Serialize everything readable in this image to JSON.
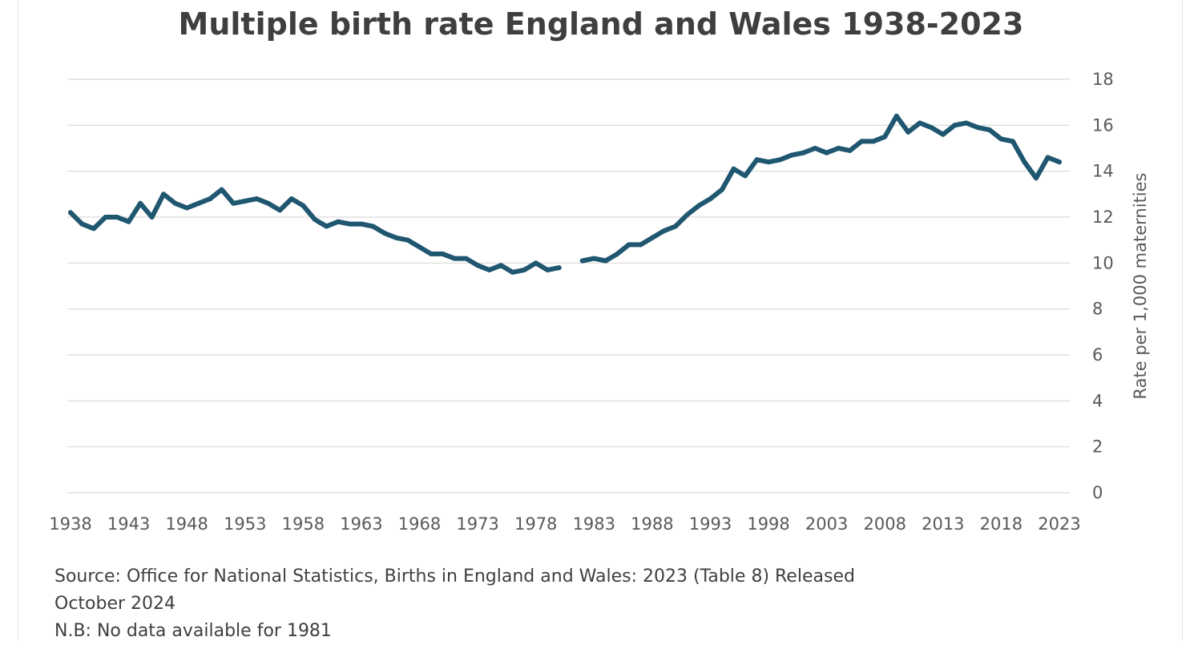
{
  "chart_data": {
    "type": "line",
    "title": "Multiple birth rate England and Wales 1938-2023",
    "xlabel": "",
    "ylabel": "Rate per 1,000 maternities",
    "ylim": [
      0,
      18
    ],
    "yticks": [
      "0",
      "2",
      "4",
      "6",
      "8",
      "10",
      "12",
      "14",
      "16",
      "18"
    ],
    "xticks": [
      "1938",
      "1943",
      "1948",
      "1953",
      "1958",
      "1963",
      "1968",
      "1973",
      "1978",
      "1983",
      "1988",
      "1993",
      "1998",
      "2003",
      "2008",
      "2013",
      "2018",
      "2023"
    ],
    "grid": true,
    "y_axis_position": "right",
    "line_color": "#1f5670",
    "x": [
      1938,
      1939,
      1940,
      1941,
      1942,
      1943,
      1944,
      1945,
      1946,
      1947,
      1948,
      1949,
      1950,
      1951,
      1952,
      1953,
      1954,
      1955,
      1956,
      1957,
      1958,
      1959,
      1960,
      1961,
      1962,
      1963,
      1964,
      1965,
      1966,
      1967,
      1968,
      1969,
      1970,
      1971,
      1972,
      1973,
      1974,
      1975,
      1976,
      1977,
      1978,
      1979,
      1980,
      1981,
      1982,
      1983,
      1984,
      1985,
      1986,
      1987,
      1988,
      1989,
      1990,
      1991,
      1992,
      1993,
      1994,
      1995,
      1996,
      1997,
      1998,
      1999,
      2000,
      2001,
      2002,
      2003,
      2004,
      2005,
      2006,
      2007,
      2008,
      2009,
      2010,
      2011,
      2012,
      2013,
      2014,
      2015,
      2016,
      2017,
      2018,
      2019,
      2020,
      2021,
      2022,
      2023
    ],
    "series": [
      {
        "values": [
          12.2,
          11.7,
          11.5,
          12.0,
          12.0,
          11.8,
          12.6,
          12.0,
          13.0,
          12.6,
          12.4,
          12.6,
          12.8,
          13.2,
          12.6,
          12.7,
          12.8,
          12.6,
          12.3,
          12.8,
          12.5,
          11.9,
          11.6,
          11.8,
          11.7,
          11.7,
          11.6,
          11.3,
          11.1,
          11.0,
          10.7,
          10.4,
          10.4,
          10.2,
          10.2,
          9.9,
          9.7,
          9.9,
          9.6,
          9.7,
          10.0,
          9.7,
          9.8,
          null,
          10.1,
          10.2,
          10.1,
          10.4,
          10.8,
          10.8,
          11.1,
          11.4,
          11.6,
          12.1,
          12.5,
          12.8,
          13.2,
          14.1,
          13.8,
          14.5,
          14.4,
          14.5,
          14.7,
          14.8,
          15.0,
          14.8,
          15.0,
          14.9,
          15.3,
          15.3,
          15.5,
          16.4,
          15.7,
          16.1,
          15.9,
          15.6,
          16.0,
          16.1,
          15.9,
          15.8,
          15.4,
          15.3,
          14.4,
          13.7,
          14.6,
          14.4
        ]
      }
    ]
  },
  "notes": {
    "source_line1": "Source: Office for National Statistics, Births in England and Wales: 2023 (Table 8) Released",
    "source_line2": "October 2024",
    "nb": "N.B: No data available for 1981"
  }
}
